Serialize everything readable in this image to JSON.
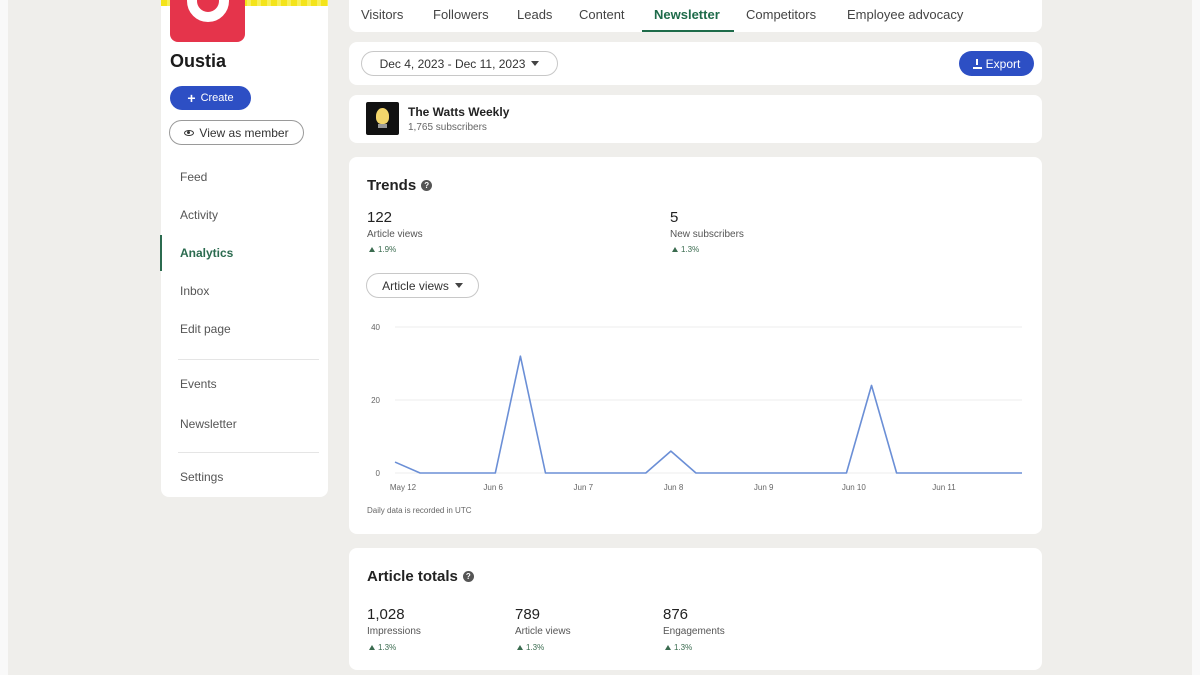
{
  "sidebar": {
    "org_name": "Oustia",
    "create_label": "Create",
    "view_as_member_label": "View as member",
    "nav": [
      {
        "label": "Feed",
        "active": false
      },
      {
        "label": "Activity",
        "active": false
      },
      {
        "label": "Analytics",
        "active": true
      },
      {
        "label": "Inbox",
        "active": false
      },
      {
        "label": "Edit page",
        "active": false
      },
      {
        "label": "Events",
        "active": false
      },
      {
        "label": "Newsletter",
        "active": false
      },
      {
        "label": "Settings",
        "active": false
      }
    ]
  },
  "tabs": [
    {
      "label": "Visitors",
      "active": false
    },
    {
      "label": "Followers",
      "active": false
    },
    {
      "label": "Leads",
      "active": false
    },
    {
      "label": "Content",
      "active": false
    },
    {
      "label": "Newsletter",
      "active": true
    },
    {
      "label": "Competitors",
      "active": false
    },
    {
      "label": "Employee advocacy",
      "active": false
    }
  ],
  "toolbar": {
    "date_range": "Dec 4, 2023 - Dec 11, 2023",
    "export_label": "Export"
  },
  "newsletter": {
    "title": "The Watts Weekly",
    "subscribers": "1,765 subscribers"
  },
  "trends": {
    "title": "Trends",
    "metrics": [
      {
        "value": "122",
        "label": "Article views",
        "change": "1.9%"
      },
      {
        "value": "5",
        "label": "New subscribers",
        "change": "1.3%"
      }
    ],
    "metric_select": "Article views",
    "note": "Daily data is recorded in UTC"
  },
  "chart_data": {
    "type": "line",
    "ylim": [
      0,
      40
    ],
    "yticks": [
      "0",
      "20",
      "40"
    ],
    "xticks": [
      "May 12",
      "Jun 6",
      "Jun 7",
      "Jun 8",
      "Jun 9",
      "Jun 10",
      "Jun 11"
    ],
    "series": [
      {
        "color": "#6b8fd6",
        "values": [
          3,
          0,
          0,
          0,
          0,
          32,
          0,
          0,
          0,
          0,
          0,
          6,
          0,
          0,
          0,
          0,
          0,
          0,
          0,
          24,
          0,
          0,
          0,
          0,
          0,
          0
        ]
      }
    ],
    "grid": true
  },
  "article_totals": {
    "title": "Article totals",
    "metrics": [
      {
        "value": "1,028",
        "label": "Impressions",
        "change": "1.3%"
      },
      {
        "value": "789",
        "label": "Article views",
        "change": "1.3%"
      },
      {
        "value": "876",
        "label": "Engagements",
        "change": "1.3%"
      }
    ]
  }
}
